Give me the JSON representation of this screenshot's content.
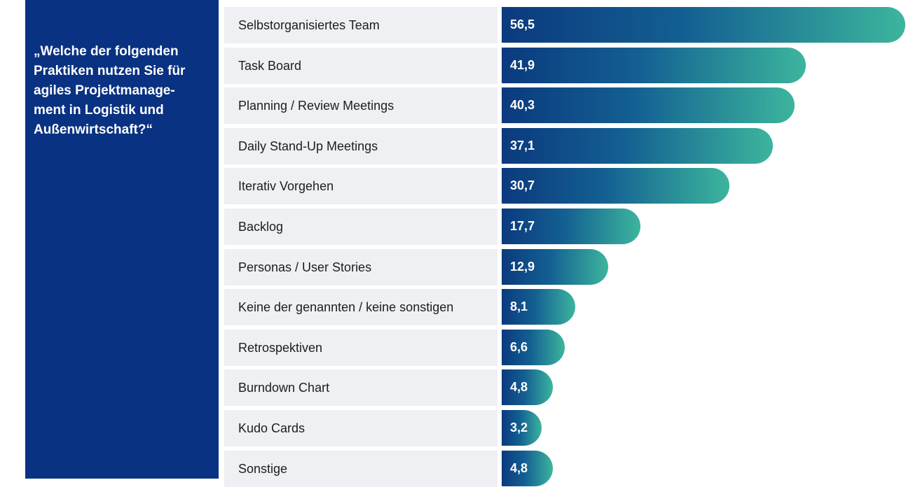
{
  "chart_data": {
    "type": "bar",
    "orientation": "horizontal",
    "title": "„Welche der folgenden Praktiken nutzen Sie für agiles Projektmanage-ment in Logistik und Außenwirtschaft?“",
    "categories": [
      "Selbstorganisiertes Team",
      "Task Board",
      "Planning / Review Meetings",
      "Daily Stand-Up Meetings",
      "Iterativ Vorgehen",
      "Backlog",
      "Personas / User Stories",
      "Keine der genannten / keine sonstigen",
      "Retrospektiven",
      "Burndown Chart",
      "Kudo Cards",
      "Sonstige"
    ],
    "values": [
      56.5,
      41.9,
      40.3,
      37.1,
      30.7,
      17.7,
      12.9,
      8.1,
      6.6,
      4.8,
      3.2,
      4.8
    ],
    "value_labels": [
      "56,5",
      "41,9",
      "40,3",
      "37,1",
      "30,7",
      "17,7",
      "12,9",
      "8,1",
      "6,6",
      "4,8",
      "3,2",
      "4,8"
    ]
  }
}
